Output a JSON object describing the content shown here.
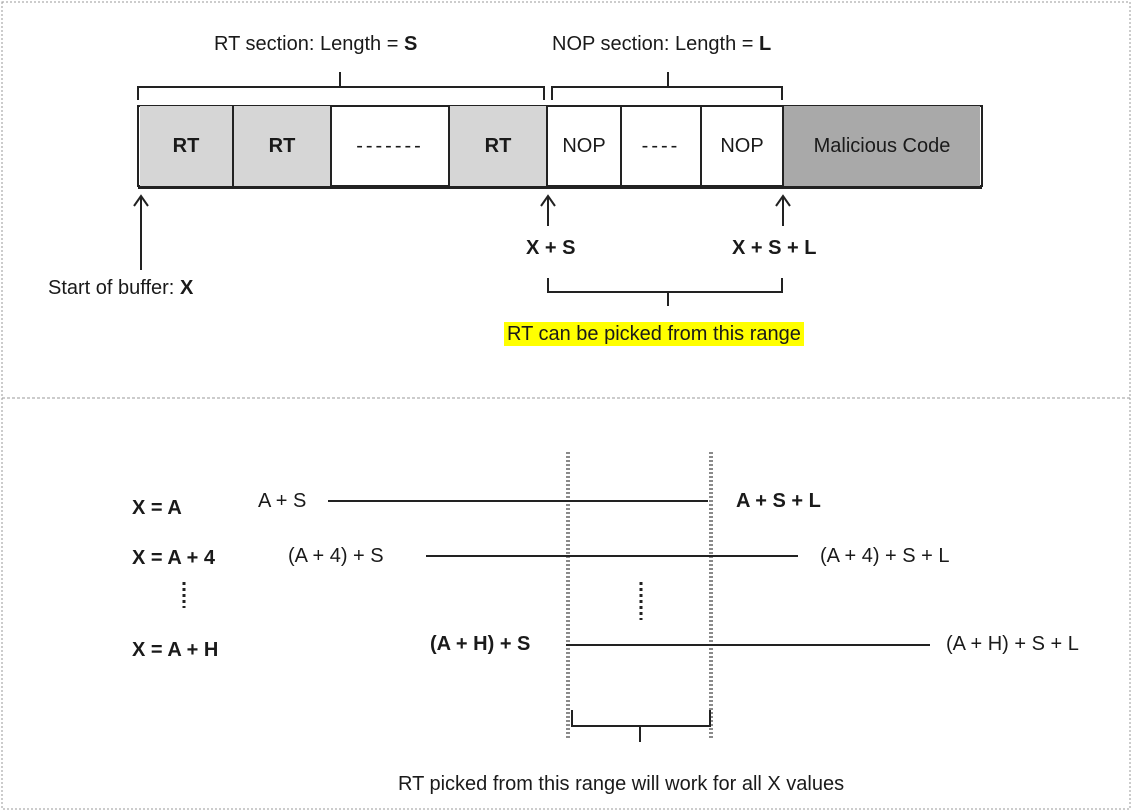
{
  "top": {
    "rt_section_label": "RT section: Length = ",
    "rt_section_var": "S",
    "nop_section_label": "NOP section: Length = ",
    "nop_section_var": "L",
    "cells": [
      "RT",
      "RT",
      "-------",
      "RT",
      "NOP",
      "----",
      "NOP",
      "Malicious Code"
    ],
    "x_plus_s": "X + S",
    "x_plus_s_plus_l": "X + S + L",
    "start_label": "Start of buffer: ",
    "start_var": "X",
    "range_note": "RT can be picked from this range"
  },
  "bottom": {
    "rows": [
      {
        "x_label": "X = A",
        "start": "A + S",
        "end": "A + S + L"
      },
      {
        "x_label": "X = A + 4",
        "start": "(A + 4) + S",
        "end": "(A + 4) + S + L"
      },
      {
        "x_label": "X = A + H",
        "start": "(A + H) + S",
        "end": "(A + H) + S + L"
      }
    ],
    "range_note": "RT picked from this range will work for all X values"
  }
}
